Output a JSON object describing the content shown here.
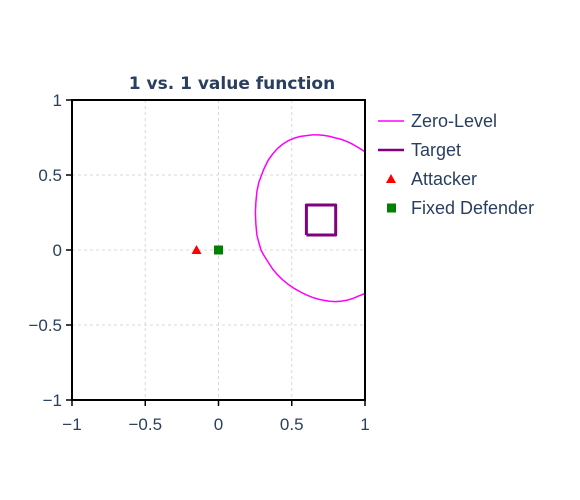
{
  "chart_data": {
    "type": "scatter",
    "title": "1 vs. 1 value function",
    "xlim": [
      -1,
      1
    ],
    "ylim": [
      -1,
      1
    ],
    "x_ticks": [
      -1,
      -0.5,
      0,
      0.5,
      1
    ],
    "y_ticks": [
      -1,
      -0.5,
      0,
      0.5,
      1
    ],
    "x_tick_labels": [
      "−1",
      "−0.5",
      "0",
      "0.5",
      "1"
    ],
    "y_tick_labels": [
      "−1",
      "−0.5",
      "0",
      "0.5",
      "1"
    ],
    "grid": true,
    "legend_position": "right",
    "series": [
      {
        "name": "Zero-Level",
        "kind": "line",
        "color": "#ff00ff",
        "x": [
          1.0,
          0.96,
          0.92,
          0.88,
          0.84,
          0.8,
          0.76,
          0.72,
          0.68,
          0.64,
          0.6,
          0.56,
          0.52,
          0.48,
          0.44,
          0.4,
          0.37,
          0.34,
          0.31,
          0.29,
          0.275,
          0.262,
          0.255,
          0.252,
          0.255,
          0.262,
          0.275,
          0.29,
          0.31,
          0.34,
          0.37,
          0.4,
          0.44,
          0.48,
          0.52,
          0.56,
          0.6,
          0.64,
          0.68,
          0.72,
          0.76,
          0.8,
          0.84,
          0.88,
          0.92,
          0.96,
          1.0
        ],
        "y": [
          -0.29,
          -0.305,
          -0.322,
          -0.334,
          -0.341,
          -0.344,
          -0.342,
          -0.336,
          -0.327,
          -0.315,
          -0.299,
          -0.28,
          -0.258,
          -0.232,
          -0.201,
          -0.162,
          -0.127,
          -0.083,
          -0.036,
          0.0,
          0.05,
          0.1,
          0.17,
          0.25,
          0.32,
          0.39,
          0.45,
          0.49,
          0.54,
          0.6,
          0.64,
          0.675,
          0.707,
          0.731,
          0.747,
          0.757,
          0.763,
          0.767,
          0.767,
          0.764,
          0.757,
          0.747,
          0.737,
          0.722,
          0.703,
          0.68,
          0.655
        ]
      },
      {
        "name": "Target",
        "kind": "line",
        "color": "#800080",
        "x": [
          0.6,
          0.8,
          0.8,
          0.6,
          0.6
        ],
        "y": [
          0.1,
          0.1,
          0.3,
          0.3,
          0.1
        ]
      },
      {
        "name": "Attacker",
        "kind": "marker",
        "marker": "triangle-up",
        "color": "#ff0000",
        "x": [
          -0.15
        ],
        "y": [
          0.0
        ]
      },
      {
        "name": "Fixed Defender",
        "kind": "marker",
        "marker": "square",
        "color": "#008000",
        "x": [
          0.0
        ],
        "y": [
          0.0
        ]
      }
    ]
  }
}
